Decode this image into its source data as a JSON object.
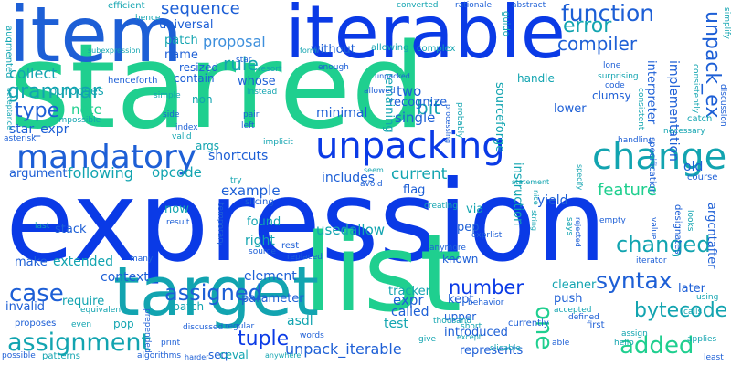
{
  "palette": {
    "background": "#ffffff",
    "blue_strong": "#0a3ae6",
    "blue": "#1d5fd6",
    "teal": "#12a4b0",
    "mint": "#1fcf8f",
    "light_blue": "#3d8fdc"
  },
  "words": {
    "starred": "starred",
    "expression": "expression",
    "list": "list",
    "target": "target",
    "iterable": "iterable",
    "item": "item",
    "unpacking": "unpacking",
    "mandatory": "mandatory",
    "change": "change",
    "assignment": "assignment",
    "function": "function",
    "grammar": "grammar",
    "type": "type",
    "assigned": "assigned",
    "tuple": "tuple",
    "syntax": "syntax",
    "added": "added",
    "changed": "changed",
    "case": "case",
    "bytecode": "bytecode",
    "sequence": "sequence",
    "rule": "rule",
    "error": "error",
    "compiler": "compiler",
    "unpack_ex": "unpack_ex",
    "collect": "collect",
    "proposal": "proposal",
    "bit": "bit",
    "number": "number",
    "one": "one",
    "unpack_iterable": "unpack_iterable",
    "represents": "represents",
    "introduced": "introduced",
    "current": "current",
    "following": "following",
    "opcode": "opcode",
    "example": "example",
    "feature": "feature",
    "note": "note",
    "purposes": "purposes",
    "star_expr": "star_expr",
    "args": "args",
    "shortcuts": "shortcuts",
    "two": "two",
    "single": "single",
    "recognize": "recognize",
    "remaining": "remaining",
    "minimal": "minimal",
    "yield": "yield",
    "includes": "includes",
    "flag": "flag",
    "argument": "argument",
    "usedallow": "usedallow",
    "right": "right",
    "extended": "extended",
    "make": "make",
    "context": "context",
    "invalid": "invalid",
    "require": "require",
    "spatch": "spatch",
    "element": "element",
    "expr": "expr",
    "parameter": "parameter",
    "called": "called",
    "test": "test",
    "asdl": "asdl",
    "tracker": "tracker",
    "kept": "kept",
    "upper": "upper",
    "cleaner": "cleaner",
    "push": "push",
    "pop": "pop",
    "seq": "seq",
    "ceval": "ceval",
    "later": "later",
    "old": "old",
    "argcntafter": "argcntafter",
    "universal": "universal",
    "patch": "patch",
    "name": "name",
    "resized": "resized",
    "whose": "whose",
    "contain": "contain",
    "without": "without",
    "non": "non",
    "stack": "stack",
    "now": "now",
    "found": "found",
    "via": "via",
    "pep": "pep",
    "known": "known",
    "implementation": "implementation",
    "interpreter": "interpreter",
    "lower": "lower",
    "handle": "handle",
    "instruction": "instruction",
    "sourceforge": "sourceforge",
    "converted": "converted",
    "efficient": "efficient",
    "hence": "hence",
    "henceforth": "henceforth",
    "subexpression": "subexpression",
    "augmented": "augmented",
    "star": "star",
    "form": "form",
    "resort": "resort",
    "guido": "guido",
    "rationale": "rationale",
    "abstract": "abstract",
    "simplify": "simplify",
    "anymore": "anymore",
    "code": "code",
    "clumsy": "clumsy",
    "catch": "catch",
    "discussion": "discussion",
    "lone": "lone",
    "consistently": "consistently",
    "consistent": "consistent",
    "specification": "specification",
    "necessary": "necessary",
    "course": "course",
    "value": "value",
    "looks": "looks",
    "designates": "designates",
    "empty": "empty",
    "iterator": "iterator",
    "using": "using",
    "calls": "calls",
    "assign": "assign",
    "applies": "applies",
    "least": "least",
    "first": "first",
    "hello": "hello",
    "able": "able",
    "currently": "currently",
    "defined": "defined",
    "accepted": "accepted",
    "slicable": "slicable",
    "except": "except",
    "short": "short",
    "thousand": "thousand",
    "behavior": "behavior",
    "give": "give",
    "words": "words",
    "anywhere": "anywhere",
    "harder": "harder",
    "algorithms": "algorithms",
    "print": "print",
    "patterns": "patterns",
    "possible": "possible",
    "proposes": "proposes",
    "even": "even",
    "prepended": "prepended",
    "equivalent": "equivalent",
    "regular": "regular",
    "many": "many",
    "last": "last",
    "result": "result",
    "source": "source",
    "replaced": "replaced",
    "rest": "rest",
    "slicing": "slicing",
    "temporary": "temporary",
    "discussed": "discussed",
    "try": "try",
    "implicit": "implicit",
    "pair": "pair",
    "left": "left",
    "index": "index",
    "valid": "valid",
    "side": "side",
    "impossible": "impossible",
    "asterisk": "asterisk",
    "acceptance": "acceptance",
    "simple": "simple",
    "instead": "instead",
    "enough": "enough",
    "unpacked": "unpacked",
    "allowed": "allowed",
    "allowing": "allowing",
    "complex": "complex",
    "processing": "processing",
    "probably": "probably",
    "seem": "seem",
    "statement": "statement",
    "creating": "creating",
    "avoid": "avoid",
    "exprlist": "exprlist",
    "string": "string",
    "rejected": "rejected",
    "says": "says",
    "specify": "specify",
    "nice": "nice",
    "surprising": "surprising",
    "handling": "handling"
  }
}
